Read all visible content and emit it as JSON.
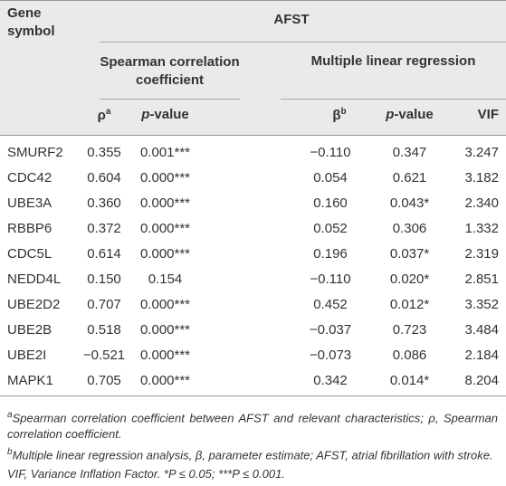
{
  "header": {
    "gene": "Gene symbol",
    "group": "AFST",
    "spearman": "Spearman correlation coefficient",
    "mlr": "Multiple linear regression",
    "rho": "ρ",
    "rho_sup": "a",
    "p1": "p-value",
    "beta": "β",
    "beta_sup": "b",
    "p2": "p-value",
    "vif": "VIF"
  },
  "rows": [
    [
      "SMURF2",
      "0.355",
      "0.001***",
      "−0.110",
      "0.347",
      "3.247"
    ],
    [
      "CDC42",
      "0.604",
      "0.000***",
      "0.054",
      "0.621",
      "3.182"
    ],
    [
      "UBE3A",
      "0.360",
      "0.000***",
      "0.160",
      "0.043*",
      "2.340"
    ],
    [
      "RBBP6",
      "0.372",
      "0.000***",
      "0.052",
      "0.306",
      "1.332"
    ],
    [
      "CDC5L",
      "0.614",
      "0.000***",
      "0.196",
      "0.037*",
      "2.319"
    ],
    [
      "NEDD4L",
      "0.150",
      "0.154",
      "−0.110",
      "0.020*",
      "2.851"
    ],
    [
      "UBE2D2",
      "0.707",
      "0.000***",
      "0.452",
      "0.012*",
      "3.352"
    ],
    [
      "UBE2B",
      "0.518",
      "0.000***",
      "−0.037",
      "0.723",
      "3.484"
    ],
    [
      "UBE2I",
      "−0.521",
      "0.000***",
      "−0.073",
      "0.086",
      "2.184"
    ],
    [
      "MAPK1",
      "0.705",
      "0.000***",
      "0.342",
      "0.014*",
      "8.204"
    ]
  ],
  "footnotes": [
    {
      "mark": "a",
      "text": "Spearman correlation coefficient between AFST and relevant characteristics; ρ, Spearman correlation coefficient."
    },
    {
      "mark": "b",
      "text": "Multiple linear regression analysis, β, parameter estimate; AFST, atrial fibrillation with stroke."
    }
  ],
  "note": "VIF, Variance Inflation Factor. *P ≤ 0.05; ***P ≤ 0.001."
}
